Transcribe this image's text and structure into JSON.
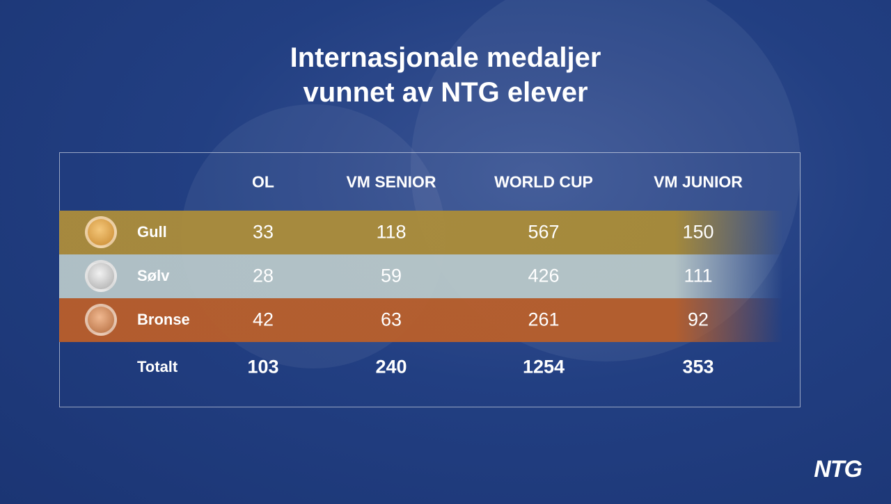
{
  "title": [
    "Internasjonale medaljer",
    "vunnet av NTG elever"
  ],
  "table": {
    "header": [
      "OL",
      "VM SENIOR",
      "WORLD CUP",
      "VM JUNIOR"
    ],
    "rows": [
      {
        "label": "Gull",
        "values": [
          33,
          118,
          567,
          150
        ]
      },
      {
        "label": "Sølv",
        "values": [
          28,
          59,
          426,
          111
        ]
      },
      {
        "label": "Bronse",
        "values": [
          42,
          63,
          261,
          92
        ]
      }
    ],
    "total": {
      "label": "Totalt",
      "values": [
        103,
        240,
        1254,
        353
      ]
    }
  },
  "logo": "NTG"
}
